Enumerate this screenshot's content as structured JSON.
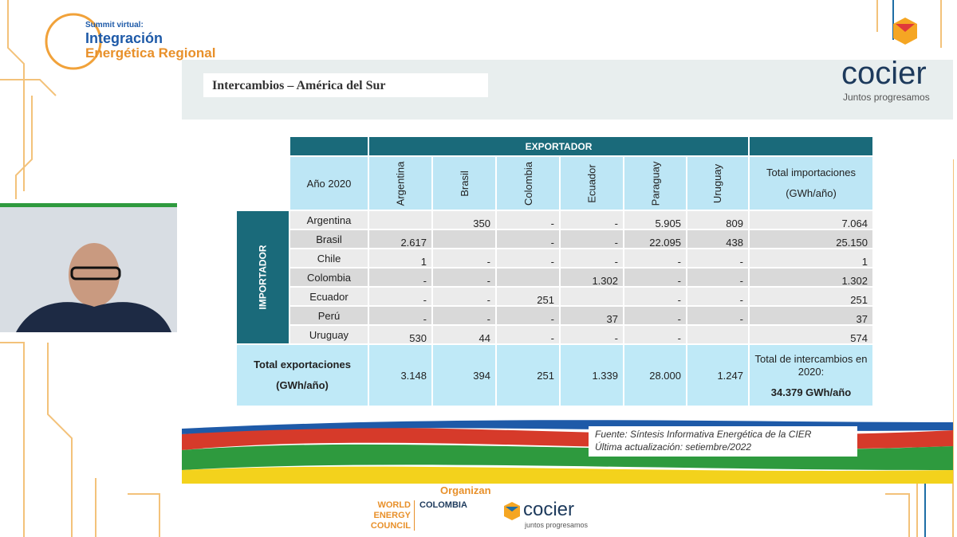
{
  "event_logo": {
    "line1": "Summit virtual:",
    "line2": "Integración",
    "line3": "Energética Regional"
  },
  "sponsor_logo": {
    "name": "cocier",
    "tagline": "Juntos progresamos"
  },
  "slide": {
    "title": "Intercambios – América del Sur",
    "table": {
      "group_header": "EXPORTADOR",
      "row_group": "IMPORTADOR",
      "corner": "Año 2020",
      "columns": [
        "Argentina",
        "Brasil",
        "Colombia",
        "Ecuador",
        "Paraguay",
        "Uruguay"
      ],
      "total_column": [
        "Total importaciones",
        "(GWh/año)"
      ],
      "rows": [
        {
          "label": "Argentina",
          "cells": [
            null,
            "350",
            "-",
            "-",
            "5.905",
            "809"
          ],
          "total": "7.064"
        },
        {
          "label": "Brasil",
          "cells": [
            "2.617",
            null,
            "-",
            "-",
            "22.095",
            "438"
          ],
          "total": "25.150"
        },
        {
          "label": "Chile",
          "cells": [
            "1",
            "-",
            "-",
            "-",
            "-",
            "-"
          ],
          "total": "1"
        },
        {
          "label": "Colombia",
          "cells": [
            "-",
            "-",
            null,
            "1.302",
            "-",
            "-"
          ],
          "total": "1.302"
        },
        {
          "label": "Ecuador",
          "cells": [
            "-",
            "-",
            "251",
            null,
            "-",
            "-"
          ],
          "total": "251"
        },
        {
          "label": "Perú",
          "cells": [
            "-",
            "-",
            "-",
            "37",
            "-",
            "-"
          ],
          "total": "37"
        },
        {
          "label": "Uruguay",
          "cells": [
            "530",
            "44",
            "-",
            "-",
            "-",
            null
          ],
          "total": "574"
        }
      ],
      "totals_row": {
        "label": [
          "Total exportaciones",
          "(GWh/año)"
        ],
        "cells": [
          "3.148",
          "394",
          "251",
          "1.339",
          "28.000",
          "1.247"
        ],
        "grand_total_label": [
          "Total de intercambios en",
          "2020:"
        ],
        "grand_total_value": "34.379 GWh/año"
      }
    },
    "source": [
      "Fuente: Síntesis Informativa Energética de la CIER",
      "Última actualización: setiembre/2022"
    ]
  },
  "footer": {
    "heading": "Organizan",
    "wec": [
      "WORLD",
      "ENERGY",
      "COUNCIL"
    ],
    "country": "COLOMBIA",
    "cocier": "cocier",
    "tagline": "juntos progresamos"
  }
}
